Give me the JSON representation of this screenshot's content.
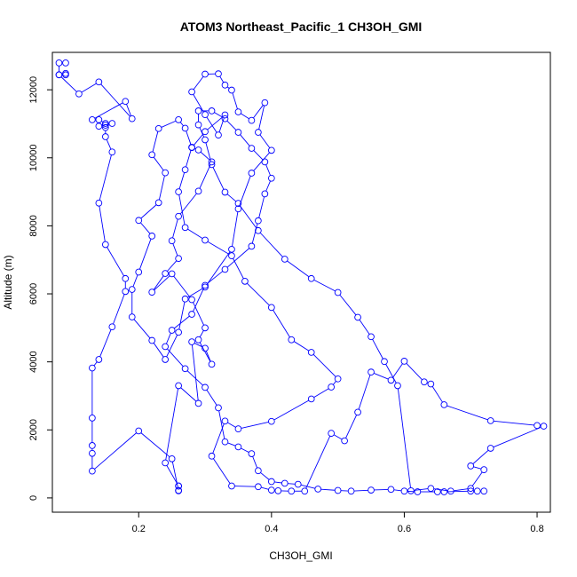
{
  "chart_data": {
    "type": "scatter",
    "title": "ATOM3 Northeast_Pacific_1 CH3OH_GMI",
    "xlabel": "CH3OH_GMI",
    "ylabel": "Altitude (m)",
    "xlim": [
      0.07,
      0.82
    ],
    "ylim": [
      -420,
      13100
    ],
    "x_ticks": [
      0.2,
      0.4,
      0.6,
      0.8
    ],
    "x_tick_labels": [
      "0.2",
      "0.4",
      "0.6",
      "0.8"
    ],
    "y_ticks": [
      0,
      2000,
      4000,
      6000,
      8000,
      10000,
      12000
    ],
    "y_tick_labels": [
      "0",
      "2000",
      "4000",
      "6000",
      "8000",
      "10000",
      "12000"
    ],
    "grid": false,
    "series_color": "#0000ff",
    "marker": "open-circle",
    "connected": true,
    "series": [
      {
        "points": [
          [
            0.09,
            12790
          ],
          [
            0.08,
            12790
          ],
          [
            0.08,
            12440
          ],
          [
            0.09,
            12440
          ],
          [
            0.09,
            12480
          ],
          [
            0.08,
            12440
          ],
          [
            0.11,
            11880
          ],
          [
            0.14,
            12230
          ],
          [
            0.19,
            11150
          ],
          [
            0.18,
            11660
          ],
          [
            0.13,
            11120
          ],
          [
            0.14,
            11120
          ],
          [
            0.15,
            11010
          ],
          [
            0.14,
            10930
          ],
          [
            0.16,
            11010
          ],
          [
            0.15,
            10960
          ],
          [
            0.15,
            10890
          ],
          [
            0.15,
            10620
          ],
          [
            0.16,
            10170
          ],
          [
            0.14,
            8670
          ],
          [
            0.15,
            7450
          ],
          [
            0.18,
            6450
          ],
          [
            0.18,
            6070
          ],
          [
            0.16,
            5030
          ],
          [
            0.14,
            4070
          ],
          [
            0.13,
            3820
          ],
          [
            0.13,
            2350
          ],
          [
            0.13,
            1540
          ],
          [
            0.13,
            1310
          ],
          [
            0.13,
            790
          ],
          [
            0.2,
            1970
          ],
          [
            0.25,
            1150
          ],
          [
            0.26,
            220
          ],
          [
            0.26,
            210
          ],
          [
            0.26,
            350
          ],
          [
            0.26,
            350
          ],
          [
            0.24,
            1030
          ],
          [
            0.26,
            3300
          ],
          [
            0.29,
            2780
          ],
          [
            0.28,
            4590
          ],
          [
            0.3,
            4400
          ],
          [
            0.31,
            3930
          ],
          [
            0.29,
            4650
          ],
          [
            0.3,
            5000
          ],
          [
            0.28,
            5830
          ],
          [
            0.25,
            6590
          ],
          [
            0.22,
            6050
          ],
          [
            0.24,
            6600
          ],
          [
            0.26,
            7040
          ],
          [
            0.25,
            7560
          ],
          [
            0.26,
            8280
          ],
          [
            0.29,
            9020
          ],
          [
            0.31,
            9880
          ],
          [
            0.29,
            10230
          ],
          [
            0.28,
            10300
          ],
          [
            0.3,
            10770
          ],
          [
            0.33,
            11260
          ],
          [
            0.32,
            10670
          ],
          [
            0.3,
            11270
          ],
          [
            0.28,
            11940
          ],
          [
            0.3,
            12460
          ],
          [
            0.32,
            12470
          ],
          [
            0.33,
            12140
          ],
          [
            0.34,
            11990
          ],
          [
            0.35,
            11350
          ],
          [
            0.37,
            11100
          ],
          [
            0.39,
            11620
          ],
          [
            0.38,
            10750
          ],
          [
            0.4,
            10220
          ],
          [
            0.37,
            9550
          ],
          [
            0.35,
            8500
          ],
          [
            0.34,
            7310
          ],
          [
            0.3,
            6200
          ],
          [
            0.27,
            5850
          ],
          [
            0.26,
            4870
          ],
          [
            0.24,
            4070
          ],
          [
            0.22,
            4630
          ],
          [
            0.19,
            5320
          ],
          [
            0.19,
            6130
          ],
          [
            0.2,
            6640
          ],
          [
            0.22,
            7700
          ],
          [
            0.2,
            8160
          ],
          [
            0.23,
            8680
          ],
          [
            0.24,
            9560
          ],
          [
            0.22,
            10090
          ],
          [
            0.23,
            10860
          ],
          [
            0.26,
            11120
          ],
          [
            0.27,
            10870
          ],
          [
            0.28,
            10310
          ],
          [
            0.27,
            9650
          ],
          [
            0.26,
            9000
          ],
          [
            0.27,
            7950
          ],
          [
            0.3,
            7580
          ],
          [
            0.34,
            7120
          ],
          [
            0.36,
            6370
          ],
          [
            0.4,
            5600
          ],
          [
            0.43,
            4650
          ],
          [
            0.46,
            4280
          ],
          [
            0.5,
            3500
          ],
          [
            0.49,
            3260
          ],
          [
            0.46,
            2910
          ],
          [
            0.4,
            2250
          ],
          [
            0.35,
            2030
          ],
          [
            0.33,
            2260
          ],
          [
            0.31,
            1230
          ],
          [
            0.34,
            350
          ],
          [
            0.38,
            330
          ],
          [
            0.4,
            230
          ],
          [
            0.41,
            210
          ],
          [
            0.43,
            200
          ],
          [
            0.45,
            200
          ],
          [
            0.49,
            1900
          ],
          [
            0.51,
            1680
          ],
          [
            0.53,
            2520
          ],
          [
            0.55,
            3700
          ],
          [
            0.58,
            3460
          ],
          [
            0.6,
            4020
          ],
          [
            0.63,
            3410
          ],
          [
            0.64,
            3350
          ],
          [
            0.66,
            2740
          ],
          [
            0.73,
            2270
          ],
          [
            0.8,
            2130
          ],
          [
            0.81,
            2110
          ],
          [
            0.73,
            1460
          ],
          [
            0.7,
            940
          ],
          [
            0.72,
            830
          ],
          [
            0.7,
            280
          ],
          [
            0.67,
            200
          ],
          [
            0.64,
            280
          ],
          [
            0.61,
            210
          ],
          [
            0.59,
            3300
          ],
          [
            0.57,
            4010
          ],
          [
            0.55,
            4740
          ],
          [
            0.53,
            5310
          ],
          [
            0.5,
            6040
          ],
          [
            0.46,
            6450
          ],
          [
            0.42,
            7020
          ],
          [
            0.38,
            7860
          ],
          [
            0.35,
            8660
          ],
          [
            0.33,
            8990
          ],
          [
            0.31,
            9800
          ],
          [
            0.3,
            10530
          ],
          [
            0.29,
            10970
          ],
          [
            0.29,
            11380
          ],
          [
            0.31,
            11380
          ],
          [
            0.33,
            11150
          ],
          [
            0.35,
            10750
          ],
          [
            0.37,
            10280
          ],
          [
            0.39,
            9880
          ],
          [
            0.4,
            9400
          ],
          [
            0.39,
            8940
          ],
          [
            0.38,
            8150
          ],
          [
            0.37,
            7400
          ],
          [
            0.33,
            6720
          ],
          [
            0.3,
            6250
          ],
          [
            0.28,
            5400
          ],
          [
            0.25,
            4930
          ],
          [
            0.24,
            4450
          ],
          [
            0.27,
            3800
          ],
          [
            0.3,
            3250
          ],
          [
            0.32,
            2650
          ],
          [
            0.33,
            1650
          ],
          [
            0.35,
            1500
          ],
          [
            0.37,
            1300
          ],
          [
            0.38,
            800
          ],
          [
            0.4,
            480
          ],
          [
            0.42,
            430
          ],
          [
            0.44,
            400
          ],
          [
            0.47,
            260
          ],
          [
            0.5,
            220
          ],
          [
            0.52,
            200
          ],
          [
            0.55,
            230
          ],
          [
            0.58,
            250
          ],
          [
            0.6,
            200
          ],
          [
            0.62,
            180
          ],
          [
            0.65,
            180
          ],
          [
            0.66,
            180
          ],
          [
            0.7,
            200
          ],
          [
            0.71,
            200
          ],
          [
            0.72,
            200
          ]
        ]
      }
    ]
  }
}
